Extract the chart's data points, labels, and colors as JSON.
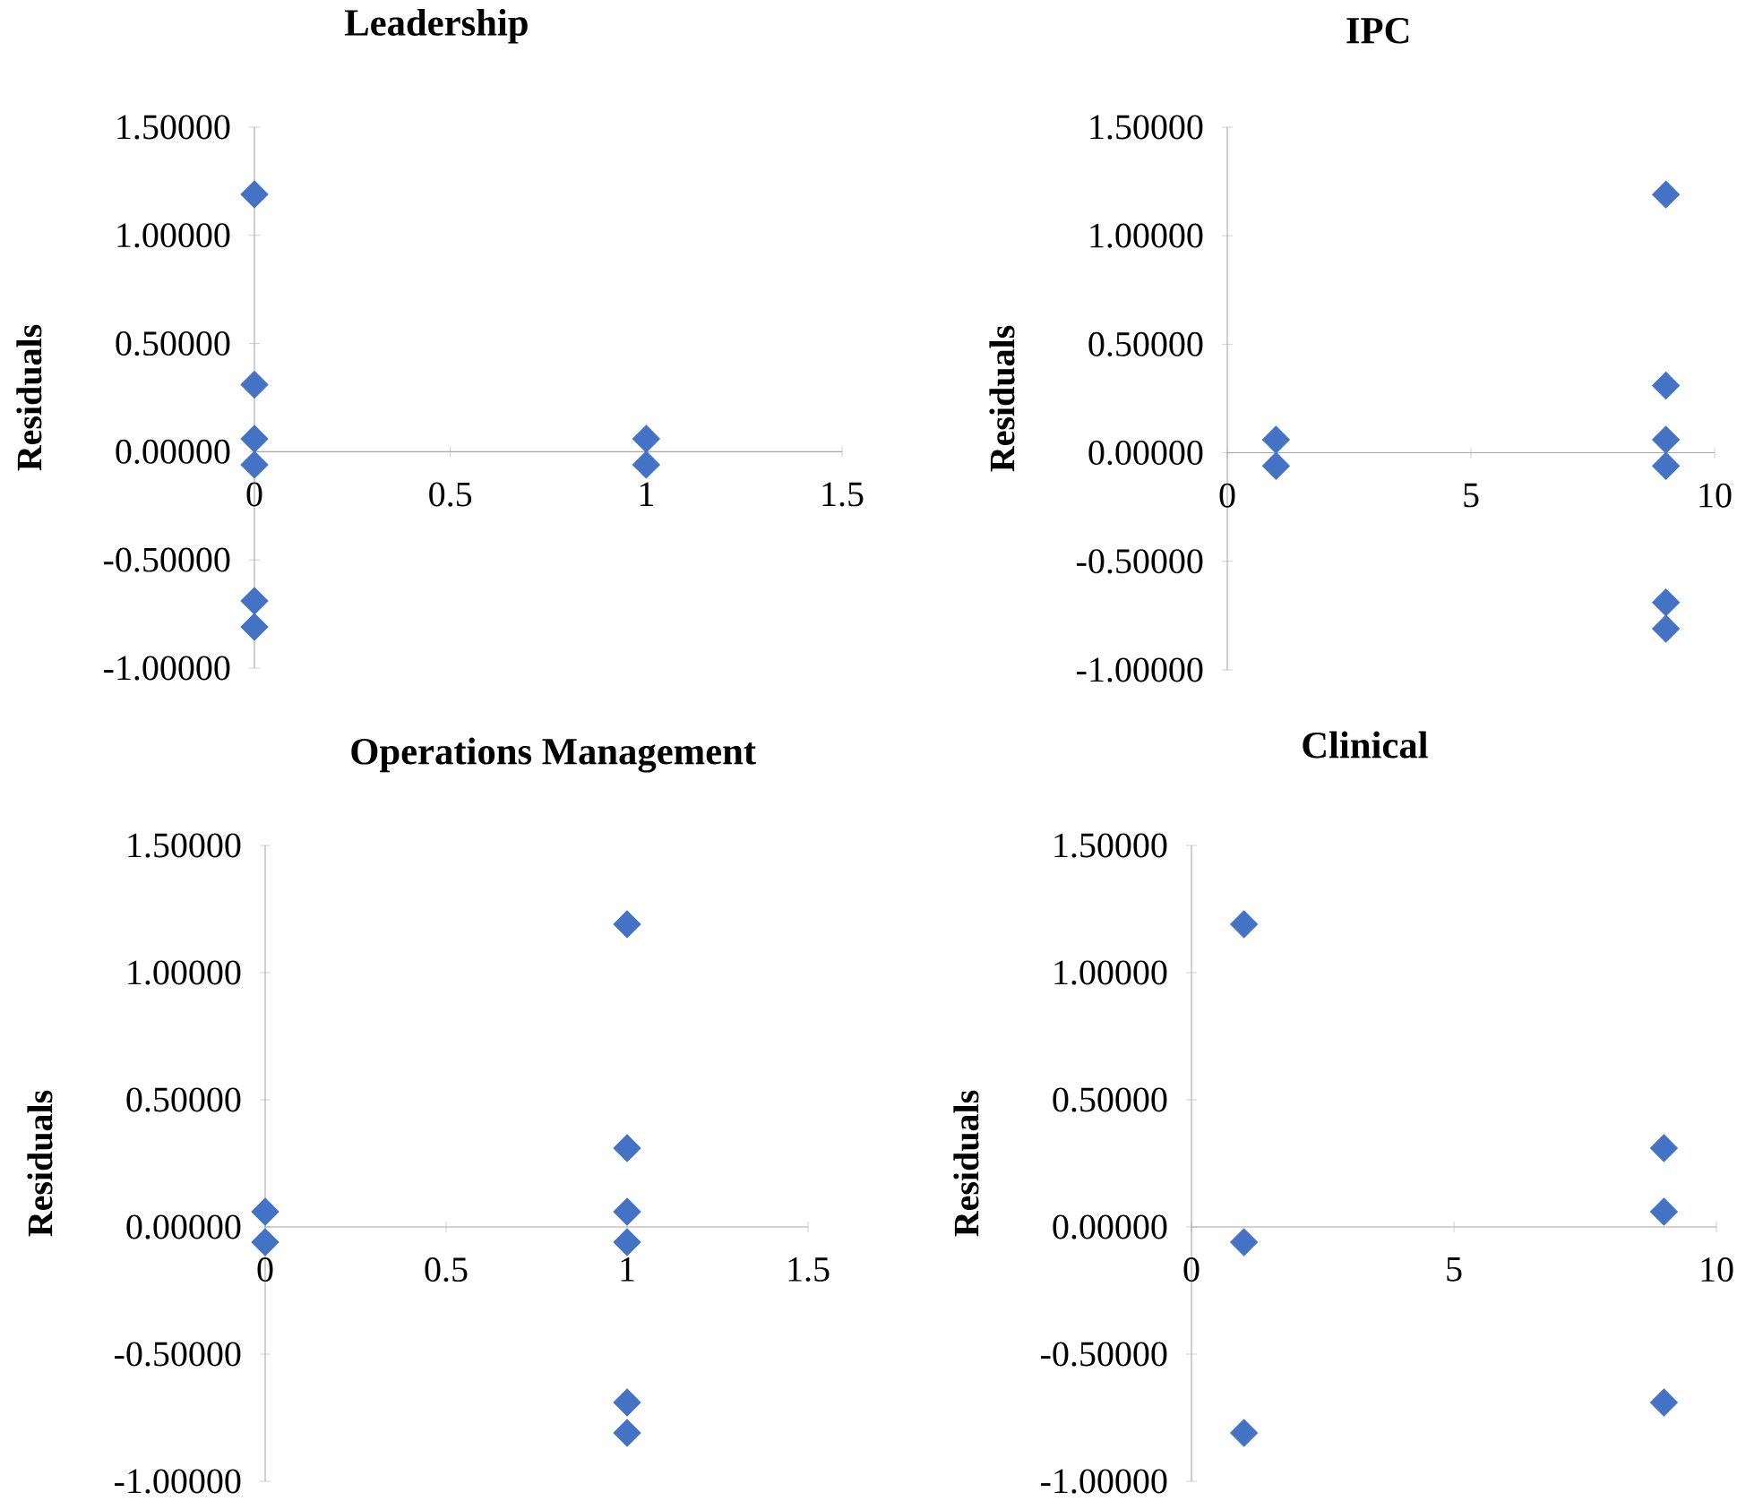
{
  "chart_data": [
    {
      "type": "scatter",
      "title": "Leadership",
      "ylabel": "Residuals",
      "color": "#4472c4",
      "marker": "diamond",
      "x": [
        0,
        0,
        0,
        0,
        0,
        0,
        1,
        1
      ],
      "values": [
        1.19,
        0.31,
        0.06,
        -0.06,
        -0.69,
        -0.81,
        0.06,
        -0.06
      ],
      "xlim": [
        0,
        1.5
      ],
      "xticks": [
        0,
        0.5,
        1,
        1.5
      ],
      "ylim": [
        -1,
        1.5
      ],
      "yticks": [
        {
          "value": -1,
          "label": "-1.00000"
        },
        {
          "value": -0.5,
          "label": "-0.50000"
        },
        {
          "value": 0,
          "label": "0.00000"
        },
        {
          "value": 0.5,
          "label": "0.50000"
        },
        {
          "value": 1,
          "label": "1.00000"
        },
        {
          "value": 1.5,
          "label": "1.50000"
        }
      ]
    },
    {
      "type": "scatter",
      "title": "IPC",
      "ylabel": "Residuals",
      "color": "#4472c4",
      "marker": "diamond",
      "x": [
        1,
        1,
        9,
        9,
        9,
        9,
        9,
        9
      ],
      "values": [
        0.06,
        -0.06,
        1.19,
        0.31,
        0.06,
        -0.06,
        -0.69,
        -0.81
      ],
      "xlim": [
        0,
        10
      ],
      "xticks": [
        0,
        5,
        10
      ],
      "ylim": [
        -1,
        1.5
      ],
      "yticks": [
        {
          "value": -1,
          "label": "-1.00000"
        },
        {
          "value": -0.5,
          "label": "-0.50000"
        },
        {
          "value": 0,
          "label": "0.00000"
        },
        {
          "value": 0.5,
          "label": "0.50000"
        },
        {
          "value": 1,
          "label": "1.00000"
        },
        {
          "value": 1.5,
          "label": "1.50000"
        }
      ]
    },
    {
      "type": "scatter",
      "title": "Operations Management",
      "ylabel": "Residuals",
      "color": "#4472c4",
      "marker": "diamond",
      "x": [
        0,
        0,
        1,
        1,
        1,
        1,
        1,
        1
      ],
      "values": [
        0.06,
        -0.06,
        1.19,
        0.31,
        0.06,
        -0.06,
        -0.69,
        -0.81
      ],
      "xlim": [
        0,
        1.5
      ],
      "xticks": [
        0,
        0.5,
        1,
        1.5
      ],
      "ylim": [
        -1,
        1.5
      ],
      "yticks": [
        {
          "value": -1,
          "label": "-1.00000"
        },
        {
          "value": -0.5,
          "label": "-0.50000"
        },
        {
          "value": 0,
          "label": "0.00000"
        },
        {
          "value": 0.5,
          "label": "0.50000"
        },
        {
          "value": 1,
          "label": "1.00000"
        },
        {
          "value": 1.5,
          "label": "1.50000"
        }
      ]
    },
    {
      "type": "scatter",
      "title": "Clinical",
      "ylabel": "Residuals",
      "color": "#4472c4",
      "marker": "diamond",
      "x": [
        1,
        1,
        1,
        9,
        9,
        9
      ],
      "values": [
        1.19,
        -0.06,
        -0.81,
        0.31,
        0.06,
        -0.69
      ],
      "xlim": [
        0,
        10
      ],
      "xticks": [
        0,
        5,
        10
      ],
      "ylim": [
        -1,
        1.5
      ],
      "yticks": [
        {
          "value": -1,
          "label": "-1.00000"
        },
        {
          "value": -0.5,
          "label": "-0.50000"
        },
        {
          "value": 0,
          "label": "0.00000"
        },
        {
          "value": 0.5,
          "label": "0.50000"
        },
        {
          "value": 1,
          "label": "1.00000"
        },
        {
          "value": 1.5,
          "label": "1.50000"
        }
      ]
    }
  ]
}
